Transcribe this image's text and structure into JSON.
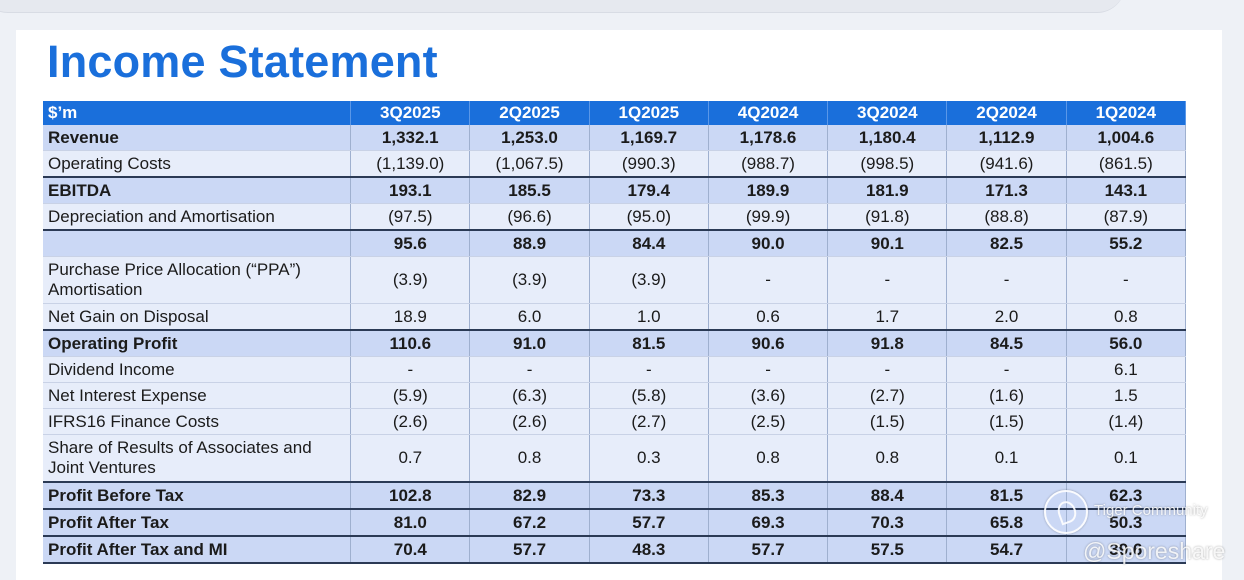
{
  "title": "Income Statement",
  "table": {
    "header": [
      "$’m",
      "3Q2025",
      "2Q2025",
      "1Q2025",
      "4Q2024",
      "3Q2024",
      "2Q2024",
      "1Q2024"
    ],
    "rows": [
      {
        "label": "Revenue",
        "values": [
          "1,332.1",
          "1,253.0",
          "1,169.7",
          "1,178.6",
          "1,180.4",
          "1,112.9",
          "1,004.6"
        ]
      },
      {
        "label": "Operating Costs",
        "values": [
          "(1,139.0)",
          "(1,067.5)",
          "(990.3)",
          "(988.7)",
          "(998.5)",
          "(941.6)",
          "(861.5)"
        ]
      },
      {
        "label": "EBITDA",
        "values": [
          "193.1",
          "185.5",
          "179.4",
          "189.9",
          "181.9",
          "171.3",
          "143.1"
        ]
      },
      {
        "label": "Depreciation and Amortisation",
        "values": [
          "(97.5)",
          "(96.6)",
          "(95.0)",
          "(99.9)",
          "(91.8)",
          "(88.8)",
          "(87.9)"
        ]
      },
      {
        "label": "",
        "values": [
          "95.6",
          "88.9",
          "84.4",
          "90.0",
          "90.1",
          "82.5",
          "55.2"
        ]
      },
      {
        "label_line1": "Purchase Price Allocation (“PPA”)",
        "label_line2": "Amortisation",
        "values": [
          "(3.9)",
          "(3.9)",
          "(3.9)",
          "-",
          "-",
          "-",
          "-"
        ]
      },
      {
        "label": "Net Gain on Disposal",
        "values": [
          "18.9",
          "6.0",
          "1.0",
          "0.6",
          "1.7",
          "2.0",
          "0.8"
        ]
      },
      {
        "label": "Operating Profit",
        "values": [
          "110.6",
          "91.0",
          "81.5",
          "90.6",
          "91.8",
          "84.5",
          "56.0"
        ]
      },
      {
        "label": "Dividend Income",
        "values": [
          "-",
          "-",
          "-",
          "-",
          "-",
          "-",
          "6.1"
        ]
      },
      {
        "label": "Net Interest Expense",
        "values": [
          "(5.9)",
          "(6.3)",
          "(5.8)",
          "(3.6)",
          "(2.7)",
          "(1.6)",
          "1.5"
        ]
      },
      {
        "label": "IFRS16 Finance Costs",
        "values": [
          "(2.6)",
          "(2.6)",
          "(2.7)",
          "(2.5)",
          "(1.5)",
          "(1.5)",
          "(1.4)"
        ]
      },
      {
        "label_line1": "Share of Results of Associates and",
        "label_line2": "Joint Ventures",
        "values": [
          "0.7",
          "0.8",
          "0.3",
          "0.8",
          "0.8",
          "0.1",
          "0.1"
        ]
      },
      {
        "label": "Profit Before Tax",
        "values": [
          "102.8",
          "82.9",
          "73.3",
          "85.3",
          "88.4",
          "81.5",
          "62.3"
        ]
      },
      {
        "label": "Profit After Tax",
        "values": [
          "81.0",
          "67.2",
          "57.7",
          "69.3",
          "70.3",
          "65.8",
          "50.3"
        ]
      },
      {
        "label": "Profit After Tax and MI",
        "values": [
          "70.4",
          "57.7",
          "48.3",
          "57.7",
          "57.5",
          "54.7",
          "39.6"
        ]
      }
    ]
  },
  "watermark": {
    "logo_icon": "tiger-community-logo-icon",
    "line1": "Tiger Community",
    "line2": "@Sporeshare"
  }
}
